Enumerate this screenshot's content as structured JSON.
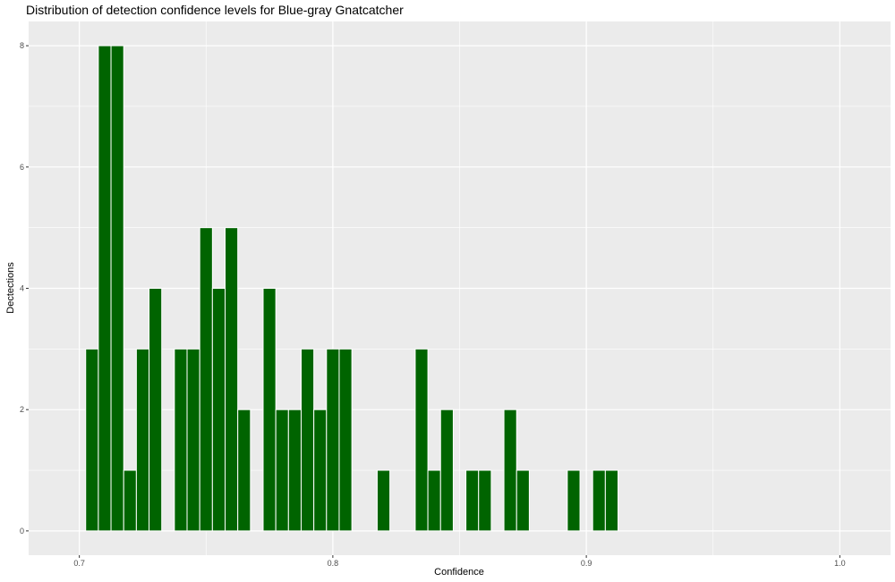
{
  "chart_data": {
    "type": "bar",
    "title": "Distribution of detection confidence levels for Blue-gray Gnatcatcher",
    "xlabel": "Confidence",
    "ylabel": "Dectections",
    "xlim": [
      0.68,
      1.02
    ],
    "ylim": [
      -0.4,
      8.4
    ],
    "x_ticks": [
      0.7,
      0.8,
      0.9,
      1.0
    ],
    "x_tick_labels": [
      "0.7",
      "0.8",
      "0.9",
      "1.0"
    ],
    "y_ticks": [
      0,
      2,
      4,
      6,
      8
    ],
    "y_tick_labels": [
      "0",
      "2",
      "4",
      "6",
      "8"
    ],
    "bin_width": 0.005,
    "grid": true,
    "legend": "none",
    "bar_color": "#006400",
    "panel_background": "#ebebeb",
    "bins": [
      {
        "x": 0.705,
        "count": 3
      },
      {
        "x": 0.71,
        "count": 8
      },
      {
        "x": 0.715,
        "count": 8
      },
      {
        "x": 0.72,
        "count": 1
      },
      {
        "x": 0.725,
        "count": 3
      },
      {
        "x": 0.73,
        "count": 4
      },
      {
        "x": 0.74,
        "count": 3
      },
      {
        "x": 0.745,
        "count": 3
      },
      {
        "x": 0.75,
        "count": 5
      },
      {
        "x": 0.755,
        "count": 4
      },
      {
        "x": 0.76,
        "count": 5
      },
      {
        "x": 0.765,
        "count": 2
      },
      {
        "x": 0.775,
        "count": 4
      },
      {
        "x": 0.78,
        "count": 2
      },
      {
        "x": 0.785,
        "count": 2
      },
      {
        "x": 0.79,
        "count": 3
      },
      {
        "x": 0.795,
        "count": 2
      },
      {
        "x": 0.8,
        "count": 3
      },
      {
        "x": 0.805,
        "count": 3
      },
      {
        "x": 0.82,
        "count": 1
      },
      {
        "x": 0.835,
        "count": 3
      },
      {
        "x": 0.84,
        "count": 1
      },
      {
        "x": 0.845,
        "count": 2
      },
      {
        "x": 0.855,
        "count": 1
      },
      {
        "x": 0.86,
        "count": 1
      },
      {
        "x": 0.87,
        "count": 2
      },
      {
        "x": 0.875,
        "count": 1
      },
      {
        "x": 0.895,
        "count": 1
      },
      {
        "x": 0.905,
        "count": 1
      },
      {
        "x": 0.91,
        "count": 1
      }
    ]
  }
}
